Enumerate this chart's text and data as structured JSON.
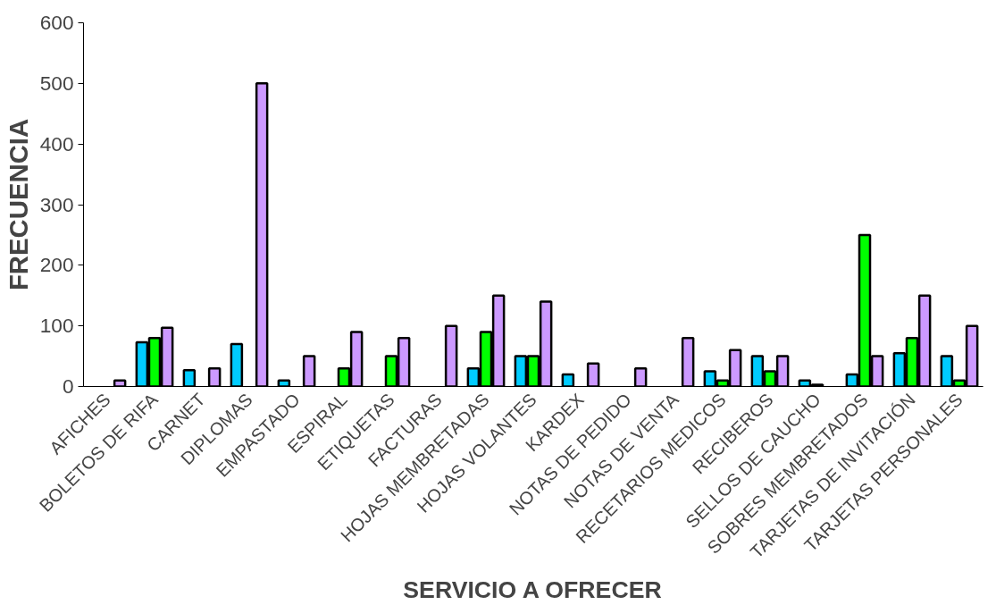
{
  "chart_data": {
    "type": "bar",
    "xlabel": "SERVICIO A OFRECER",
    "ylabel": "FRECUENCIA",
    "categories": [
      "AFICHES",
      "BOLETOS DE RIFA",
      "CARNET",
      "DIPLOMAS",
      "EMPASTADO",
      "ESPIRAL",
      "ETIQUETAS",
      "FACTURAS",
      "HOJAS MEMBRETADAS",
      "HOJAS VOLANTES",
      "KARDEX",
      "NOTAS DE PEDIDO",
      "NOTAS DE VENTA",
      "RECETARIOS MEDICOS",
      "RECIBEROS",
      "SELLOS DE CAUCHO",
      "SOBRES MEMBRETADOS",
      "TARJETAS DE INVITACIÓN",
      "TARJETAS PERSONALES"
    ],
    "series": [
      {
        "color": "#00ccff",
        "values": [
          null,
          73,
          27,
          70,
          10,
          null,
          null,
          null,
          30,
          50,
          20,
          null,
          null,
          25,
          50,
          10,
          20,
          55,
          50
        ]
      },
      {
        "color": "#00ff00",
        "values": [
          null,
          80,
          null,
          null,
          null,
          30,
          50,
          null,
          90,
          50,
          null,
          null,
          null,
          10,
          25,
          3,
          250,
          80,
          10
        ]
      },
      {
        "color": "#cc99ff",
        "values": [
          10,
          97,
          30,
          500,
          50,
          90,
          80,
          100,
          150,
          140,
          38,
          30,
          80,
          60,
          50,
          null,
          50,
          150,
          100
        ]
      }
    ],
    "ylim": [
      0,
      600
    ],
    "yticks": [
      0,
      100,
      200,
      300,
      400,
      500,
      600
    ],
    "grid": false
  }
}
